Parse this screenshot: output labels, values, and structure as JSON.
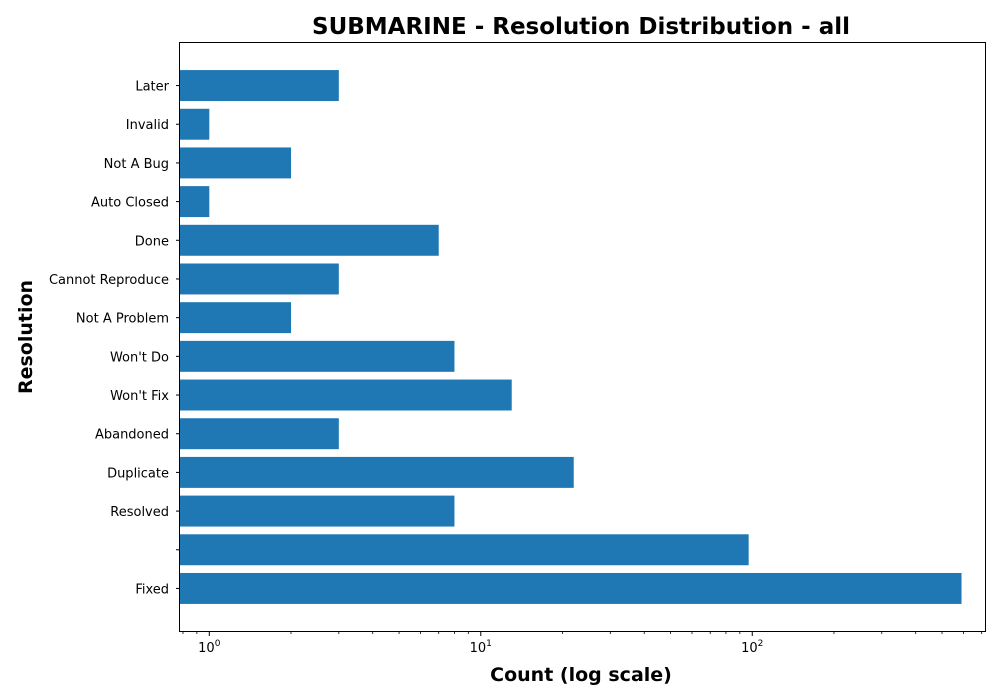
{
  "chart_data": {
    "type": "bar",
    "orientation": "horizontal",
    "title": "SUBMARINE - Resolution Distribution - all",
    "xlabel": "Count (log scale)",
    "ylabel": "Resolution",
    "x_scale": "log",
    "xlim": [
      0.78,
      720
    ],
    "x_ticks": [
      {
        "value": 1,
        "base": "10",
        "exp": "0"
      },
      {
        "value": 10,
        "base": "10",
        "exp": "1"
      },
      {
        "value": 100,
        "base": "10",
        "exp": "2"
      }
    ],
    "categories": [
      "Fixed",
      "",
      "Resolved",
      "Duplicate",
      "Abandoned",
      "Won't Fix",
      "Won't Do",
      "Not A Problem",
      "Cannot Reproduce",
      "Done",
      "Auto Closed",
      "Not A Bug",
      "Invalid",
      "Later"
    ],
    "values": [
      590,
      97,
      8,
      22,
      3,
      13,
      8,
      2,
      3,
      7,
      1,
      2,
      1,
      3
    ],
    "bar_color": "#1f77b4",
    "grid": false,
    "legend": "none"
  }
}
